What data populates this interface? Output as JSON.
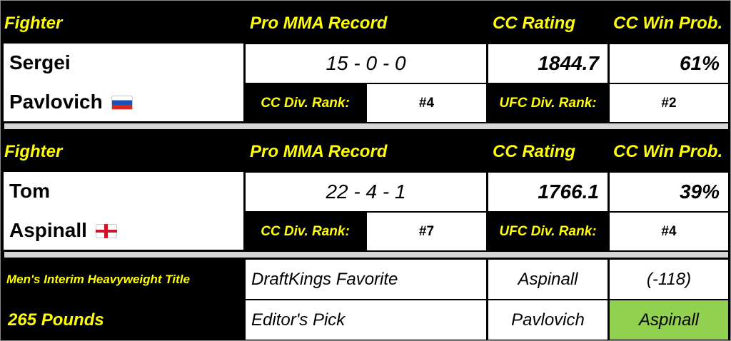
{
  "headers": {
    "fighter": "Fighter",
    "record": "Pro MMA Record",
    "rating": "CC Rating",
    "prob": "CC Win Prob."
  },
  "labels": {
    "cc_rank": "CC Div. Rank:",
    "ufc_rank": "UFC Div. Rank:"
  },
  "fighters": [
    {
      "first": "Sergei",
      "last": "Pavlovich",
      "flag": "russia-flag",
      "record": "15 - 0 - 0",
      "rating": "1844.7",
      "win_prob": "61%",
      "cc_rank": "#4",
      "ufc_rank": "#2"
    },
    {
      "first": "Tom",
      "last": "Aspinall",
      "flag": "england-flag",
      "record": "22 - 4 - 1",
      "rating": "1766.1",
      "win_prob": "39%",
      "cc_rank": "#7",
      "ufc_rank": "#4"
    }
  ],
  "bout": {
    "title": "Men's Interim Heavyweight Title",
    "weight": "265 Pounds",
    "favorite_label": "DraftKings Favorite",
    "favorite": "Aspinall",
    "odds": "(-118)",
    "pick_label": "Editor's Pick",
    "pick_other": "Pavlovich",
    "pick": "Aspinall"
  },
  "colors": {
    "header_text": "#ffff00",
    "pick_highlight": "#92d050",
    "background": "#000000"
  }
}
